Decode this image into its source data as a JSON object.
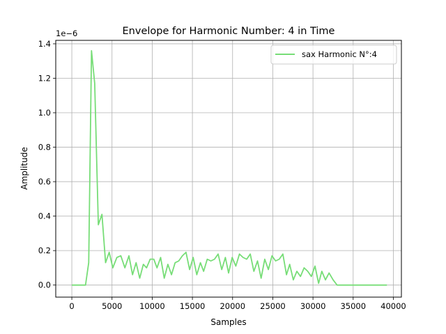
{
  "chart_data": {
    "type": "line",
    "title": "Envelope for Harmonic Number: 4 in Time",
    "xlabel": "Samples",
    "ylabel": "Amplitude",
    "y_offset_label": "1e−6",
    "xlim": [
      -2000,
      41000
    ],
    "ylim": [
      -0.07,
      1.42
    ],
    "xticks": [
      0,
      5000,
      10000,
      15000,
      20000,
      25000,
      30000,
      35000,
      40000
    ],
    "xtick_labels": [
      "0",
      "5000",
      "10000",
      "15000",
      "20000",
      "25000",
      "30000",
      "35000",
      "40000"
    ],
    "yticks": [
      0.0,
      0.2,
      0.4,
      0.6,
      0.8,
      1.0,
      1.2,
      1.4
    ],
    "ytick_labels": [
      "0.0",
      "0.2",
      "0.4",
      "0.6",
      "0.8",
      "1.0",
      "1.2",
      "1.4"
    ],
    "grid": true,
    "legend_position": "top-right",
    "series": [
      {
        "name": "sax Harmonic N°:4",
        "color": "#77dd77",
        "x": [
          0,
          1700,
          2100,
          2450,
          2850,
          3300,
          3750,
          4200,
          4650,
          5100,
          5600,
          6100,
          6600,
          7100,
          7550,
          8000,
          8450,
          8900,
          9300,
          9750,
          10200,
          10600,
          11050,
          11500,
          11950,
          12400,
          12850,
          13300,
          13750,
          14200,
          14650,
          15100,
          15550,
          16000,
          16400,
          16850,
          17300,
          17750,
          18200,
          18650,
          19100,
          19500,
          19950,
          20400,
          20850,
          21300,
          21750,
          22200,
          22650,
          23100,
          23550,
          24000,
          24450,
          24900,
          25350,
          25800,
          26250,
          26700,
          27100,
          27550,
          28000,
          28450,
          28900,
          29350,
          29800,
          30250,
          30700,
          31100,
          31550,
          32000,
          32500,
          33000,
          34000,
          36000,
          38000,
          39200
        ],
        "y": [
          0.0,
          0.0,
          0.13,
          1.36,
          1.17,
          0.35,
          0.41,
          0.13,
          0.19,
          0.1,
          0.16,
          0.17,
          0.1,
          0.17,
          0.06,
          0.13,
          0.04,
          0.12,
          0.1,
          0.15,
          0.15,
          0.1,
          0.16,
          0.04,
          0.12,
          0.06,
          0.13,
          0.14,
          0.17,
          0.19,
          0.09,
          0.16,
          0.06,
          0.13,
          0.08,
          0.15,
          0.14,
          0.15,
          0.18,
          0.09,
          0.16,
          0.07,
          0.16,
          0.11,
          0.18,
          0.16,
          0.15,
          0.18,
          0.08,
          0.14,
          0.04,
          0.15,
          0.09,
          0.17,
          0.14,
          0.15,
          0.18,
          0.06,
          0.12,
          0.03,
          0.08,
          0.05,
          0.1,
          0.08,
          0.05,
          0.11,
          0.01,
          0.08,
          0.03,
          0.07,
          0.03,
          0.0,
          0.0,
          0.0,
          0.0,
          0.0
        ]
      }
    ]
  }
}
